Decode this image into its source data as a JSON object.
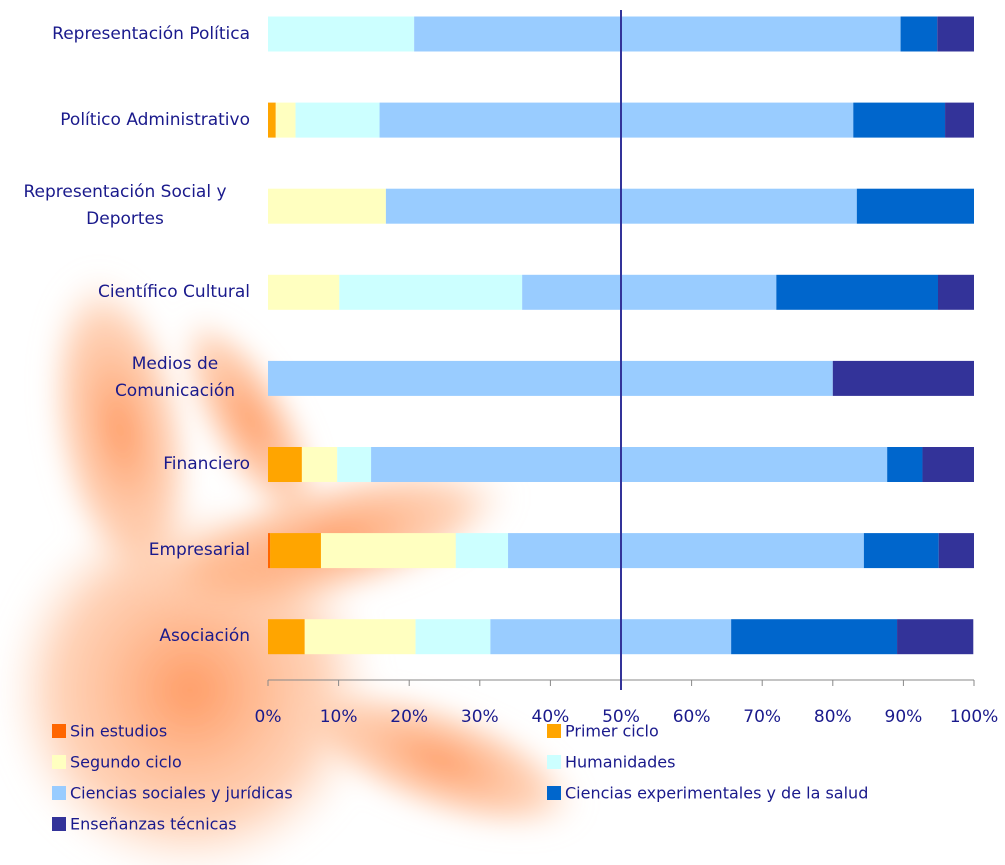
{
  "chart_data": {
    "type": "stacked-barh",
    "categories": [
      "Representación Política",
      "Político Administrativo",
      "Representación Social y Deportes",
      "Científico Cultural",
      "Medios de Comunicación",
      "Financiero",
      "Empresarial",
      "Asociación"
    ],
    "series": [
      {
        "name": "Sin estudios",
        "color": "#ff6600",
        "values": [
          0,
          0,
          0,
          0,
          0,
          0,
          0.3,
          0
        ]
      },
      {
        "name": "Primer ciclo",
        "color": "#ffa500",
        "values": [
          0,
          1.1,
          0,
          0,
          0,
          4.8,
          7.2,
          5.2
        ]
      },
      {
        "name": "Segundo ciclo",
        "color": "#ffffc0",
        "values": [
          0,
          2.8,
          16.7,
          10.1,
          0,
          5.0,
          19.1,
          15.7
        ]
      },
      {
        "name": "Humanidades",
        "color": "#ccffff",
        "values": [
          20.7,
          11.9,
          0,
          25.9,
          0,
          4.8,
          7.4,
          10.6
        ]
      },
      {
        "name": "Ciencias sociales y jurídicas",
        "color": "#99ccff",
        "values": [
          68.9,
          67.1,
          66.7,
          36.0,
          80,
          73.1,
          50.4,
          34.1
        ]
      },
      {
        "name": "Ciencias experimentales y de la salud",
        "color": "#0066cc",
        "values": [
          5.2,
          13.0,
          16.6,
          22.9,
          0,
          5.0,
          10.6,
          23.5
        ]
      },
      {
        "name": "Enseñanzas técnicas",
        "color": "#333399",
        "values": [
          5.2,
          4.1,
          0,
          5.1,
          20,
          7.3,
          5.0,
          10.8
        ]
      }
    ],
    "xlim": [
      0,
      100
    ],
    "xticks": [
      {
        "value": 0,
        "label": "0%"
      },
      {
        "value": 10,
        "label": "10%"
      },
      {
        "value": 20,
        "label": "20%"
      },
      {
        "value": 30,
        "label": "30%"
      },
      {
        "value": 40,
        "label": "40%"
      },
      {
        "value": 50,
        "label": "50%"
      },
      {
        "value": 60,
        "label": "60%"
      },
      {
        "value": 70,
        "label": "70%"
      },
      {
        "value": 80,
        "label": "80%"
      },
      {
        "value": 90,
        "label": "90%"
      },
      {
        "value": 100,
        "label": "100%"
      }
    ],
    "reference_line": 50,
    "reference_color": "#333399"
  }
}
